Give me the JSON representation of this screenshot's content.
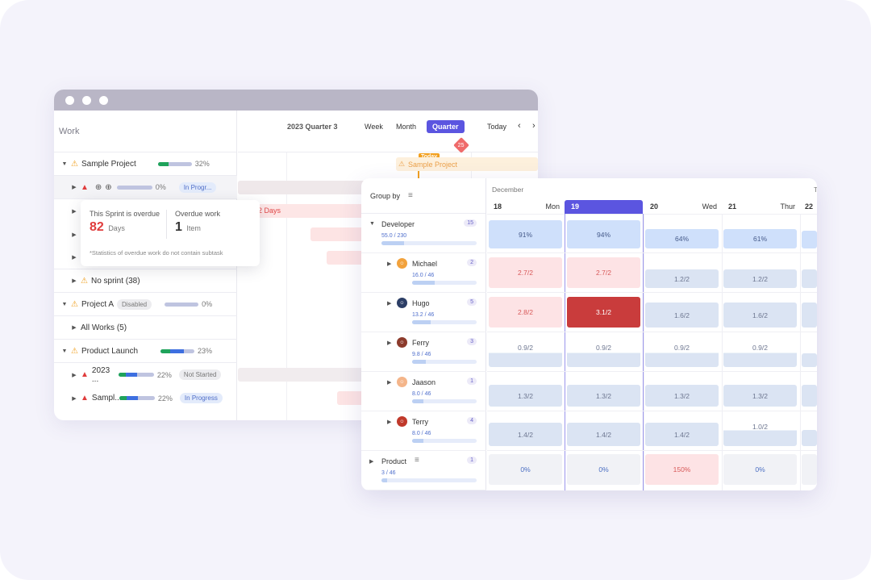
{
  "gantt": {
    "work_header": "Work",
    "period_label": "2023 Quarter 3",
    "views": [
      "Week",
      "Month",
      "Quarter"
    ],
    "active_view": "Quarter",
    "today_button": "Today",
    "today_marker": "Today",
    "milestone_count": "25",
    "timeline_label": "Sample Project",
    "overdue_label": "2 Days",
    "rows": [
      {
        "title": "Sample Project",
        "progress_pct": "32%",
        "progress": 0.32
      },
      {
        "status": "In Progr...",
        "progress_pct": "0%",
        "progress": 0
      },
      {
        "title": "No sprint (38)"
      },
      {
        "title": "Project A",
        "badge": "Disabled",
        "progress_pct": "0%",
        "progress": 0
      },
      {
        "title": "All Works (5)"
      },
      {
        "title": "Product Launch",
        "progress_pct": "23%",
        "progress": 0.23
      },
      {
        "title": "2023 ...",
        "progress_pct": "22%",
        "progress": 0.22,
        "status": "Not Started"
      },
      {
        "title": "Sampl...",
        "progress_pct": "22%",
        "progress": 0.22,
        "status": "In Progress"
      }
    ]
  },
  "tooltip": {
    "sprint_label": "This Sprint is overdue",
    "days_value": "82",
    "days_unit": "Days",
    "overdue_label": "Overdue work",
    "item_value": "1",
    "item_unit": "Item",
    "note": "*Statistics of overdue work do not contain subtask"
  },
  "workload": {
    "group_by": "Group by",
    "month": "December",
    "days": [
      {
        "num": "18",
        "week": "Mon"
      },
      {
        "num": "19",
        "week": ""
      },
      {
        "num": "20",
        "week": "Wed"
      },
      {
        "num": "21",
        "week": "Thur"
      },
      {
        "num": "22",
        "week": ""
      }
    ],
    "next_week_initial": "T",
    "groups": [
      {
        "name": "Developer",
        "count": "15",
        "value": "55.0 / 230",
        "fill": 0.24,
        "cells": [
          "91%",
          "94%",
          "64%",
          "61%"
        ]
      },
      {
        "name": "Product",
        "count": "1",
        "value": "3 / 46",
        "fill": 0.06,
        "cells": [
          "0%",
          "0%",
          "150%",
          "0%"
        ]
      }
    ],
    "members": [
      {
        "name": "Michael",
        "count": "2",
        "value": "16.0 / 46",
        "fill": 0.35,
        "cells": [
          "2.7/2",
          "2.7/2",
          "1.2/2",
          "1.2/2"
        ]
      },
      {
        "name": "Hugo",
        "count": "5",
        "value": "13.2 / 46",
        "fill": 0.29,
        "cells": [
          "2.8/2",
          "3.1/2",
          "1.6/2",
          "1.6/2"
        ]
      },
      {
        "name": "Ferry",
        "count": "3",
        "value": "9.8 / 46",
        "fill": 0.21,
        "cells": [
          "0.9/2",
          "0.9/2",
          "0.9/2",
          "0.9/2"
        ]
      },
      {
        "name": "Jaason",
        "count": "1",
        "value": "8.0 / 46",
        "fill": 0.17,
        "cells": [
          "1.3/2",
          "1.3/2",
          "1.3/2",
          "1.3/2"
        ]
      },
      {
        "name": "Terry",
        "count": "4",
        "value": "8.0 / 46",
        "fill": 0.17,
        "cells": [
          "1.4/2",
          "1.4/2",
          "1.4/2",
          "1.0/2"
        ]
      }
    ]
  },
  "colors": {
    "accent": "#5b55e0",
    "overload": "#c93c3c",
    "warning": "#f2a020",
    "progress_green": "#1fa35b",
    "progress_blue": "#3d6fe0"
  }
}
